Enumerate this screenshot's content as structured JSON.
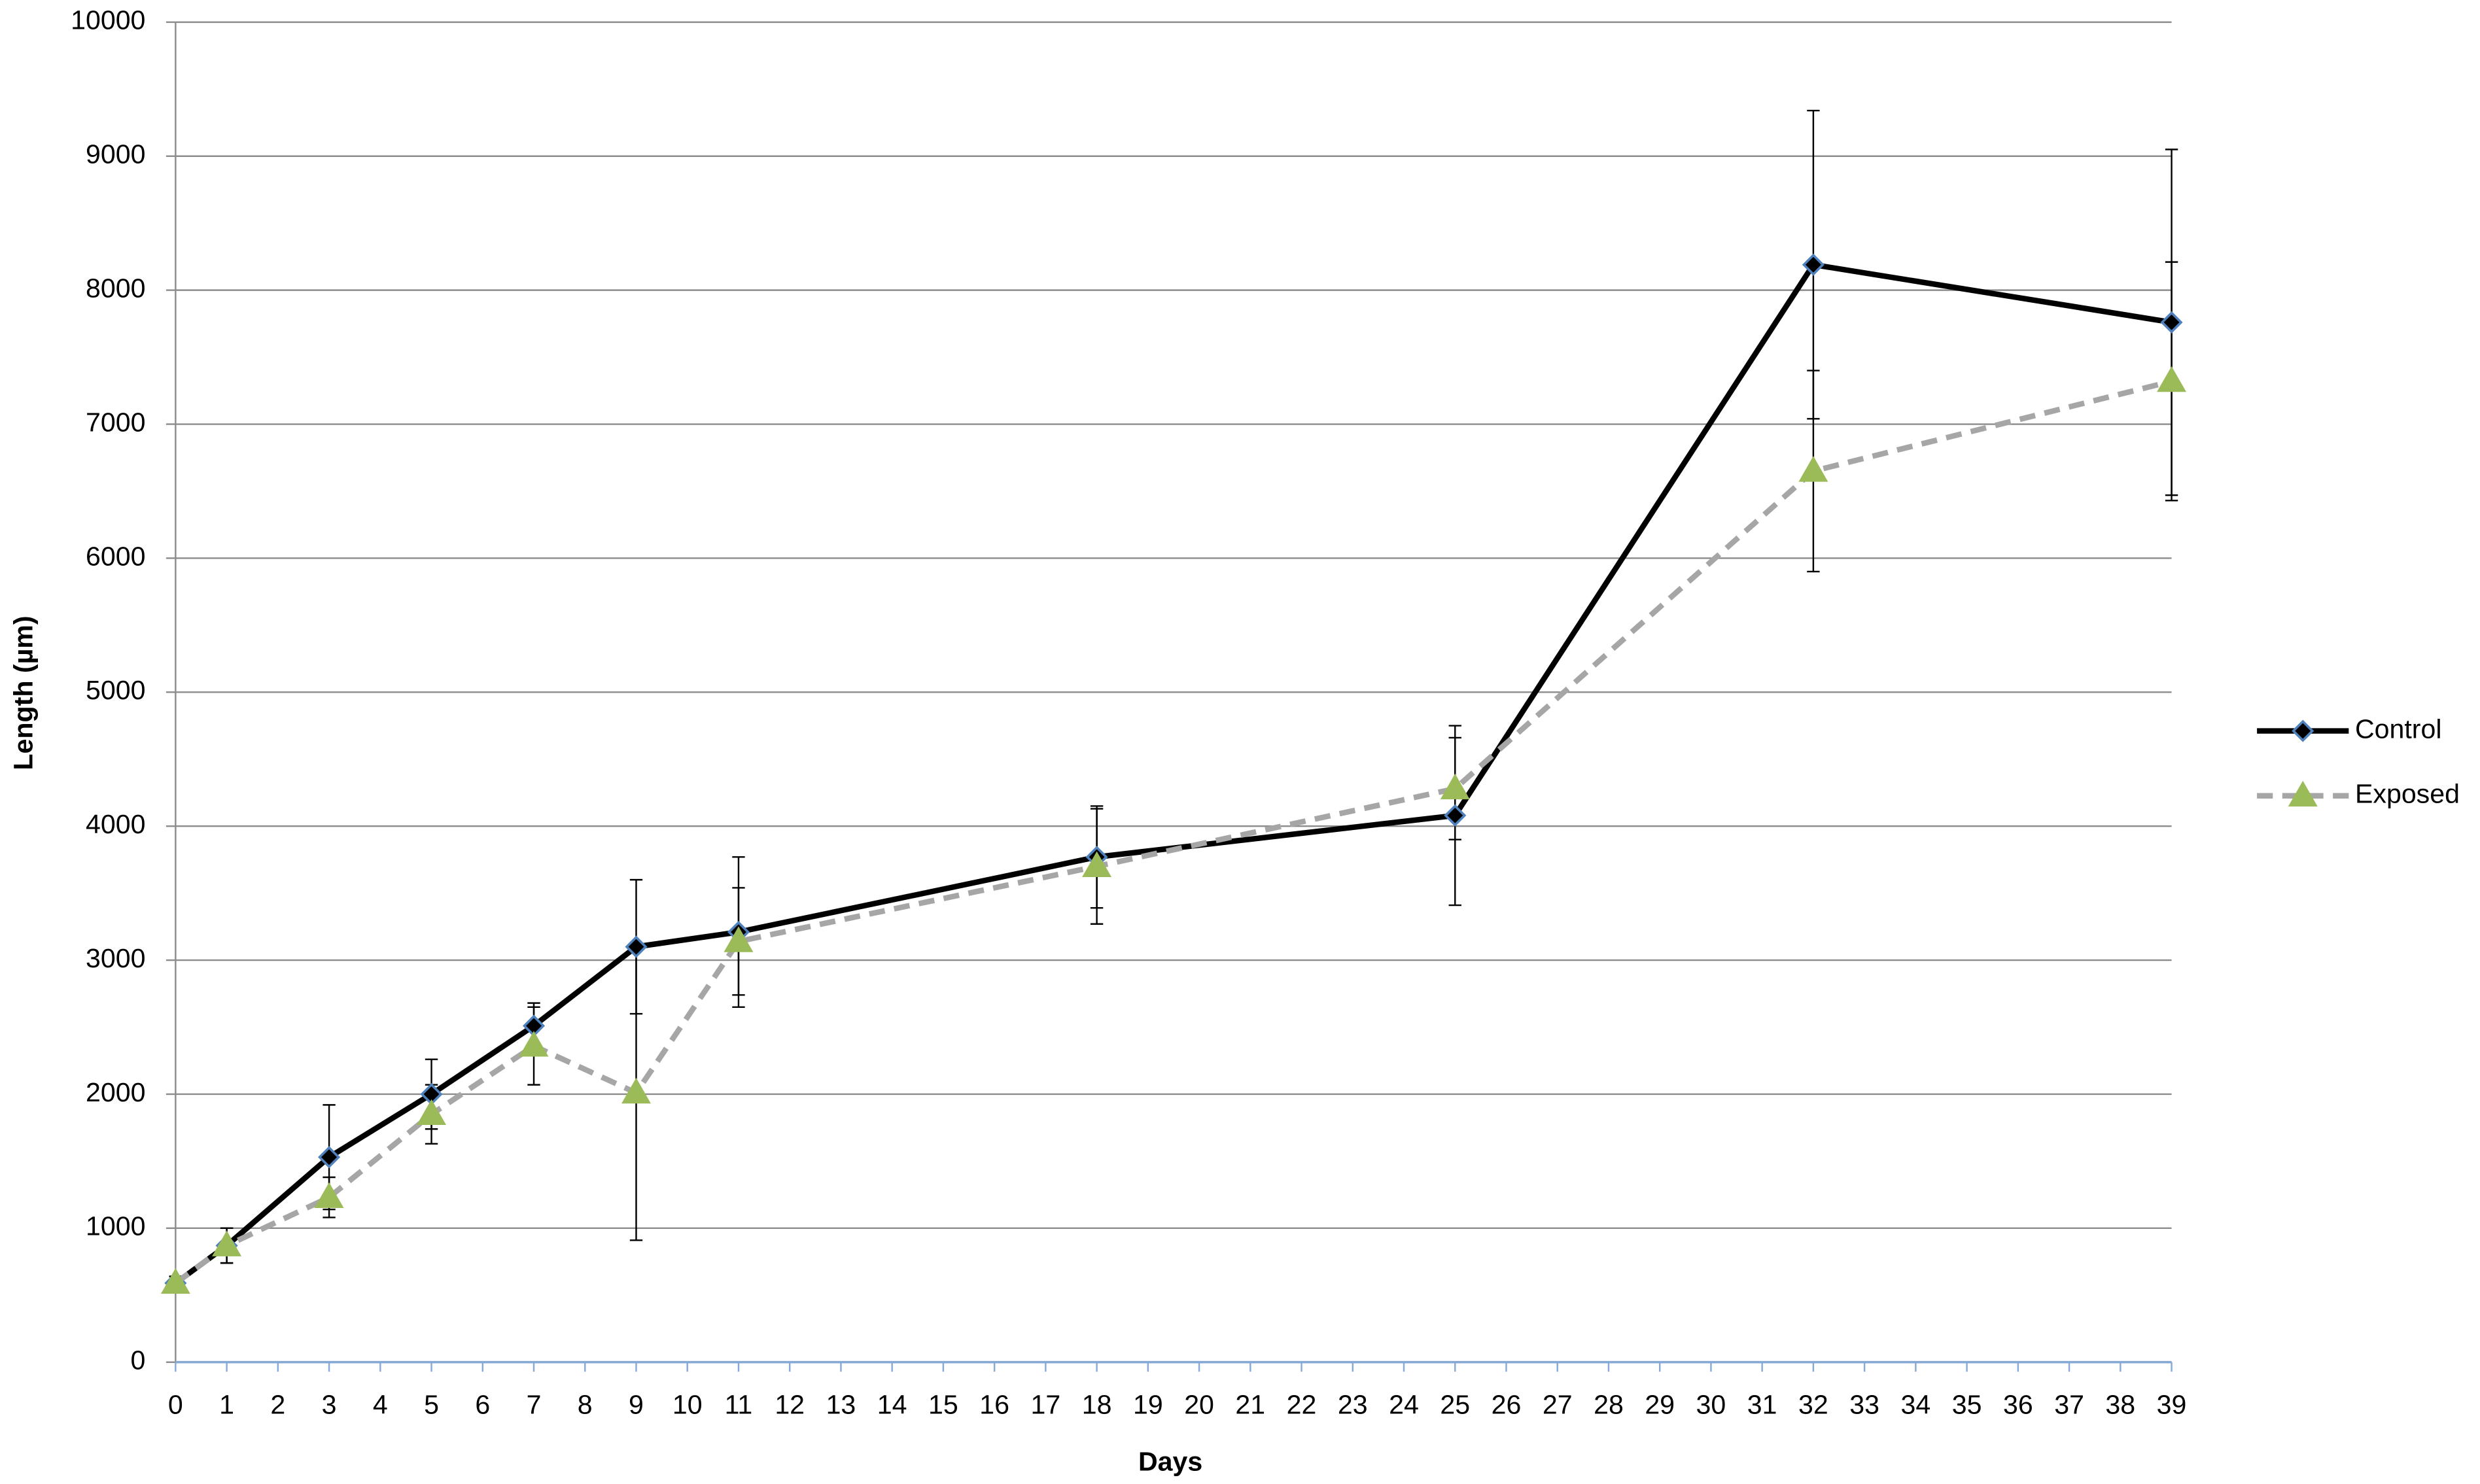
{
  "chart_data": {
    "type": "line",
    "xlabel": "Days",
    "ylabel": "Length (µm)",
    "x": [
      0,
      1,
      3,
      5,
      7,
      9,
      11,
      18,
      25,
      32,
      39
    ],
    "series": [
      {
        "name": "Control",
        "color": "#000000",
        "marker_fill": "#000000",
        "marker_stroke": "#4f81bd",
        "marker": "diamond",
        "dashed": false,
        "values": [
          590,
          870,
          1530,
          2000,
          2510,
          3100,
          3210,
          3770,
          4080,
          8190,
          7760
        ],
        "errors": [
          50,
          130,
          390,
          260,
          170,
          500,
          560,
          380,
          670,
          1150,
          1290
        ]
      },
      {
        "name": "Exposed",
        "color": "#a6a6a6",
        "marker_fill": "#9bbb59",
        "marker_stroke": "#9bbb59",
        "marker": "triangle",
        "dashed": true,
        "values": [
          590,
          870,
          1230,
          1850,
          2360,
          2010,
          3140,
          3700,
          4280,
          6650,
          7320
        ],
        "errors": [
          50,
          130,
          150,
          220,
          290,
          1100,
          400,
          430,
          380,
          750,
          890
        ]
      }
    ],
    "xlim": [
      0,
      39
    ],
    "xticks": [
      0,
      1,
      2,
      3,
      4,
      5,
      6,
      7,
      8,
      9,
      10,
      11,
      12,
      13,
      14,
      15,
      16,
      17,
      18,
      19,
      20,
      21,
      22,
      23,
      24,
      25,
      26,
      27,
      28,
      29,
      30,
      31,
      32,
      33,
      34,
      35,
      36,
      37,
      38,
      39
    ],
    "ylim": [
      0,
      10000
    ],
    "yticks": [
      0,
      1000,
      2000,
      3000,
      4000,
      5000,
      6000,
      7000,
      8000,
      9000,
      10000
    ],
    "grid": true,
    "legend": "right"
  }
}
